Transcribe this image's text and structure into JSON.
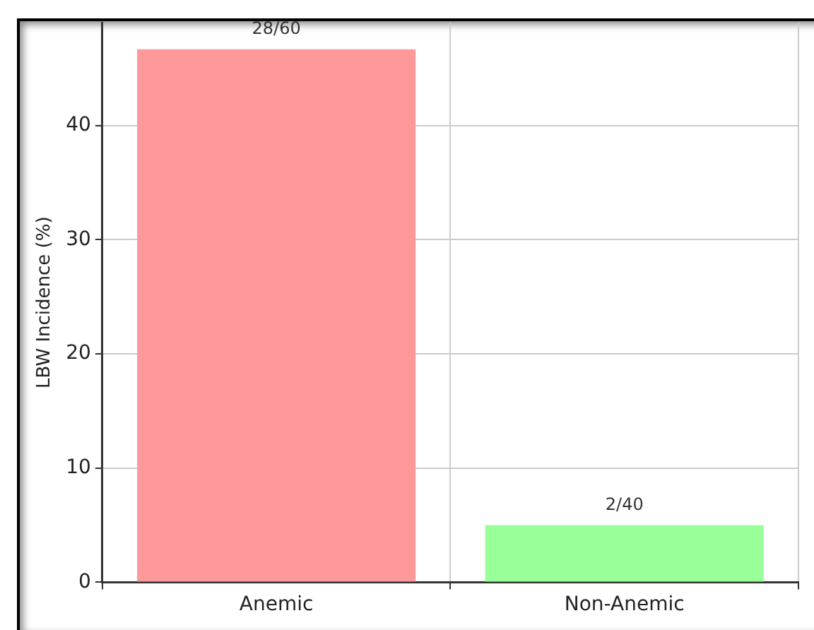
{
  "chart_data": {
    "type": "bar",
    "ylabel": "LBW Incidence (%)",
    "categories": [
      "Anemic",
      "Non-Anemic"
    ],
    "values": [
      46.67,
      5
    ],
    "colors": [
      "#ff9999",
      "#99ff99"
    ],
    "value_labels": [
      "28/60",
      "2/40"
    ],
    "ylim": [
      0,
      49
    ],
    "yticks": [
      0,
      10,
      20,
      30,
      40
    ],
    "grid": true,
    "legend": false
  }
}
